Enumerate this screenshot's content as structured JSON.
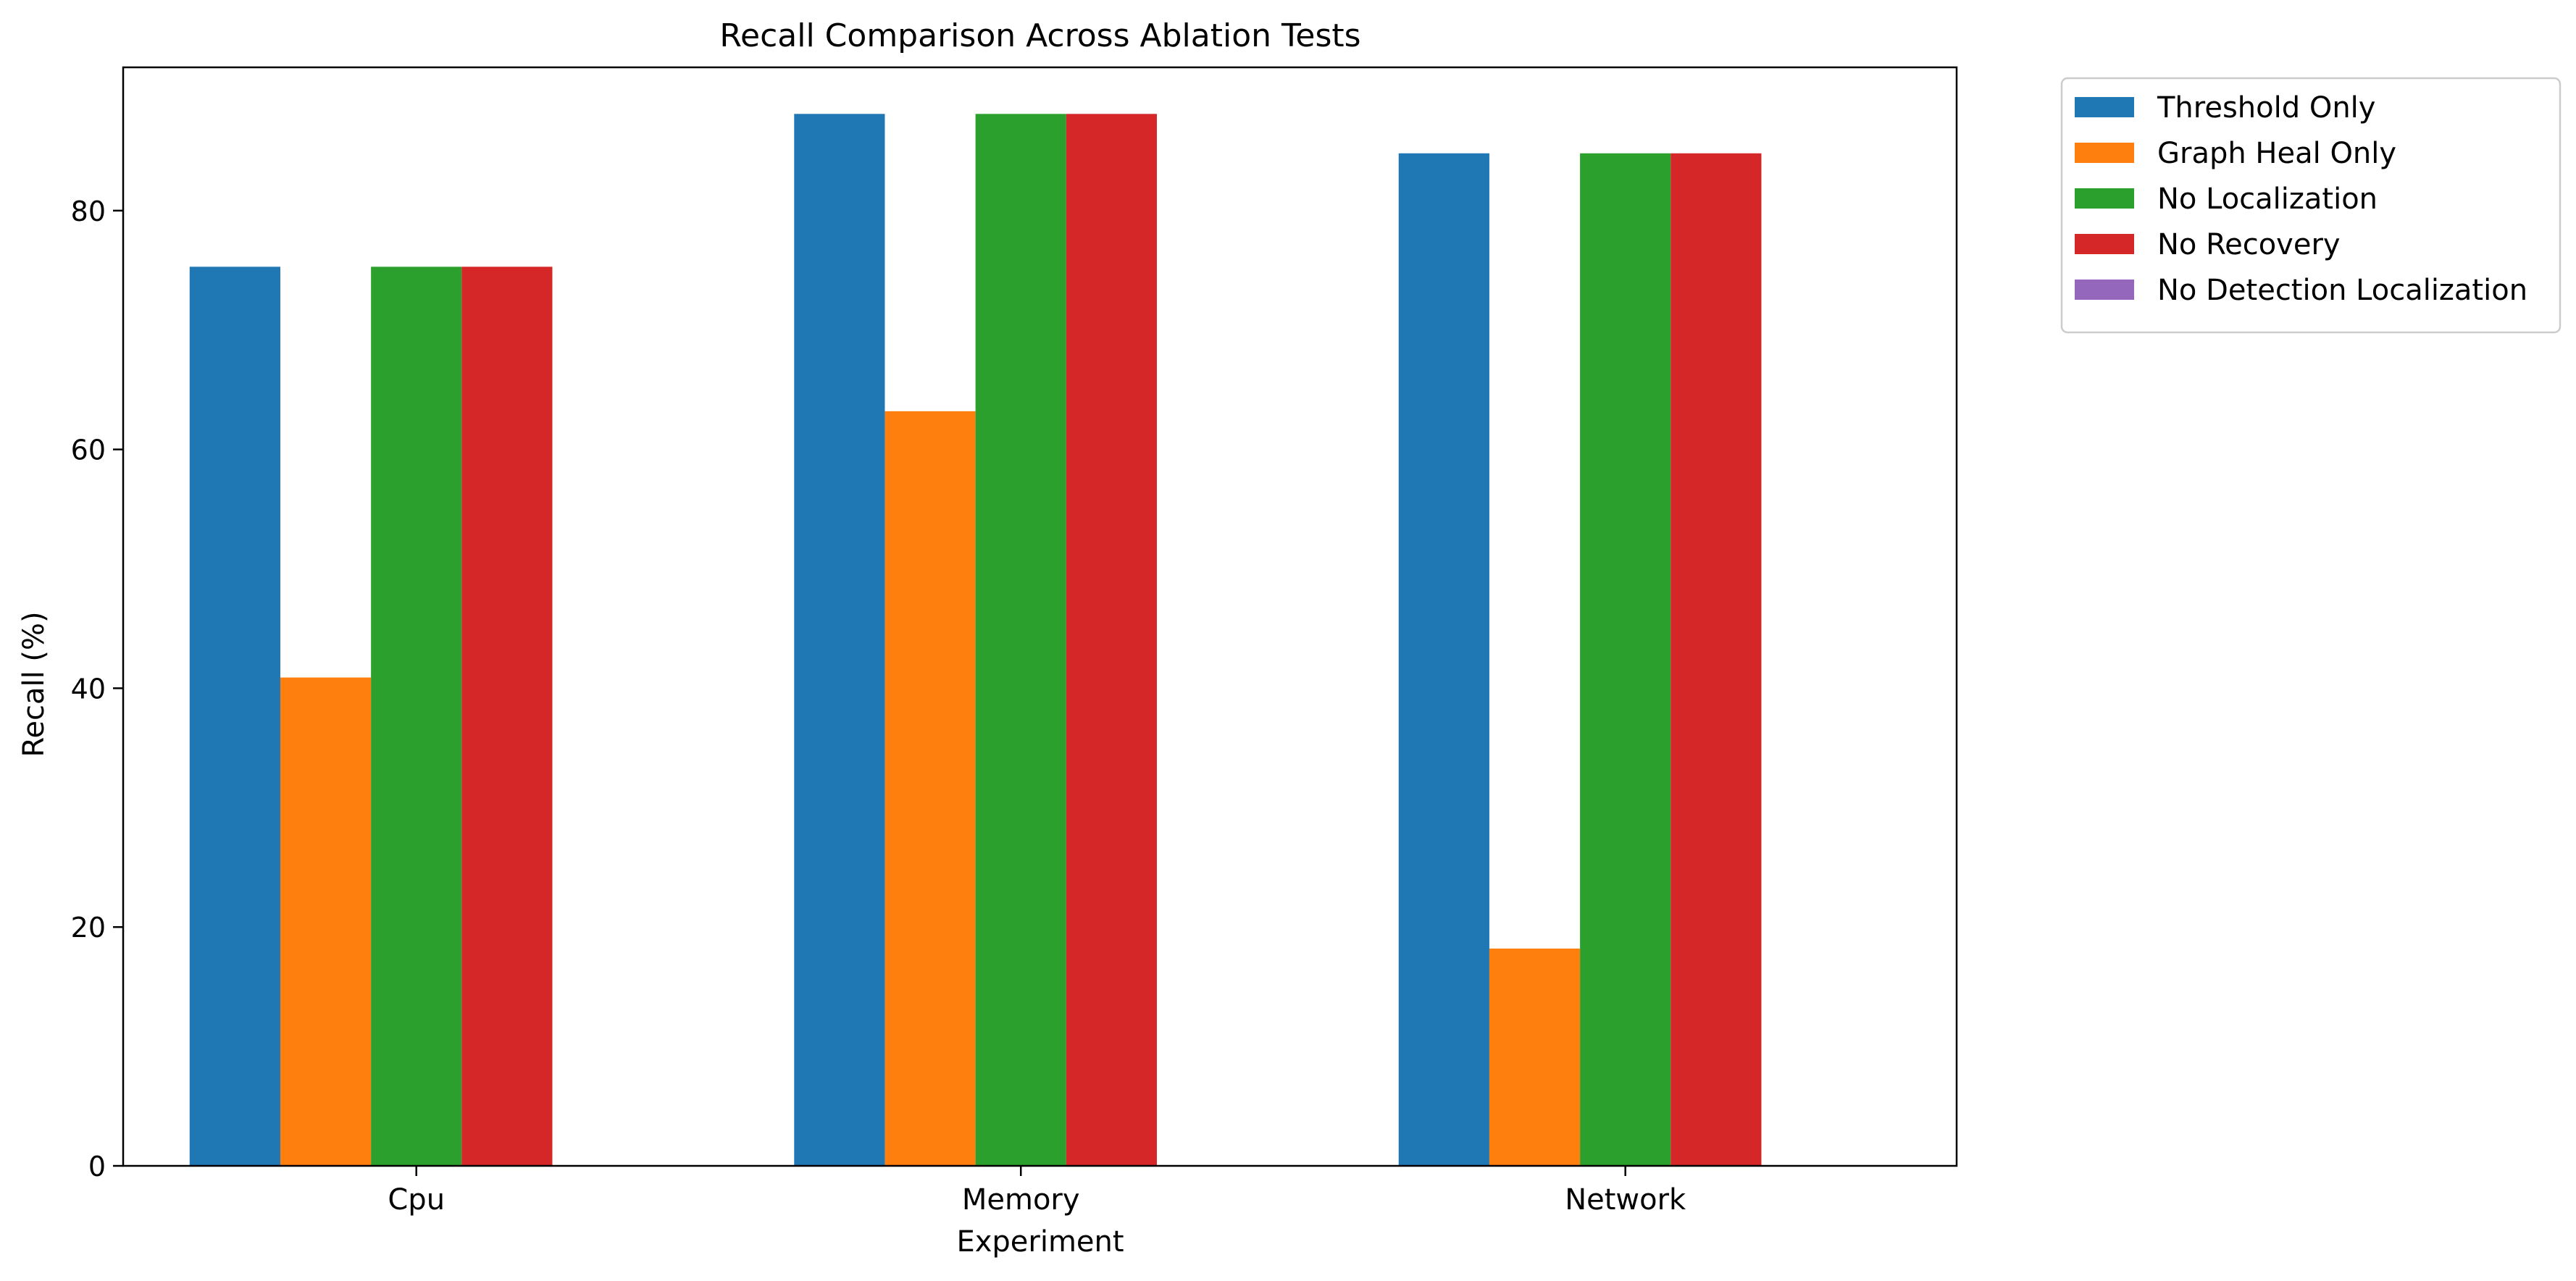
{
  "chart_data": {
    "type": "bar",
    "title": "Recall Comparison Across Ablation Tests",
    "xlabel": "Experiment",
    "ylabel": "Recall (%)",
    "categories": [
      "Cpu",
      "Memory",
      "Network"
    ],
    "ylim": [
      0,
      92
    ],
    "yticks": [
      0,
      20,
      40,
      60,
      80
    ],
    "grid": false,
    "legend_position": "outside-top-right",
    "series": [
      {
        "name": "Threshold Only",
        "color": "#1f77b4",
        "values": [
          75.3,
          88.1,
          84.8
        ]
      },
      {
        "name": "Graph Heal Only",
        "color": "#ff7f0e",
        "values": [
          40.9,
          63.2,
          18.2
        ]
      },
      {
        "name": "No Localization",
        "color": "#2ca02c",
        "values": [
          75.3,
          88.1,
          84.8
        ]
      },
      {
        "name": "No Recovery",
        "color": "#d62728",
        "values": [
          75.3,
          88.1,
          84.8
        ]
      },
      {
        "name": "No Detection Localization",
        "color": "#9467bd",
        "values": [
          0,
          0,
          0
        ]
      }
    ]
  }
}
